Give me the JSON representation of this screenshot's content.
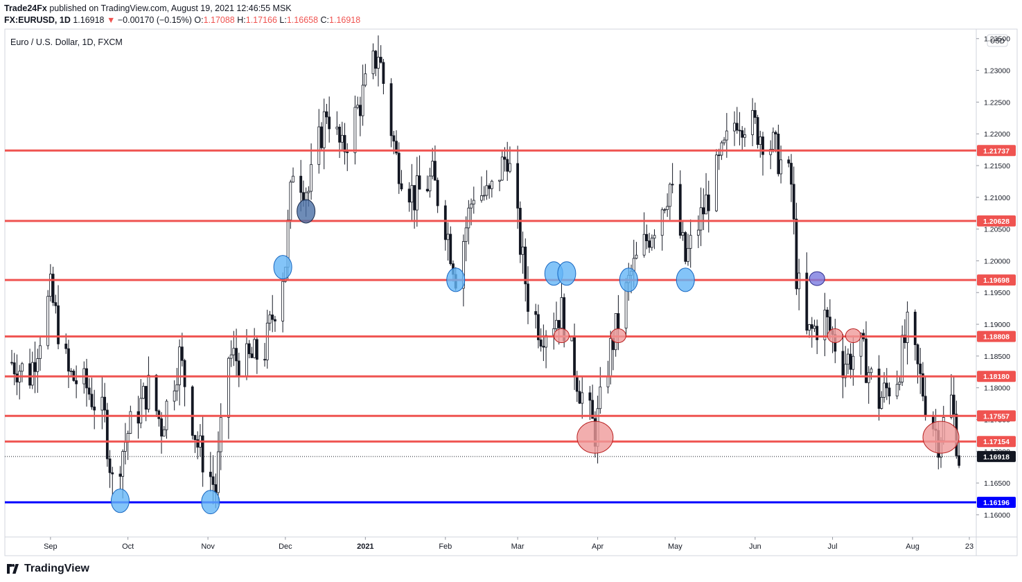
{
  "header": {
    "author": "Trade24Fx",
    "published_text": "published on TradingView.com, August 19, 2021 12:46:55 MSK",
    "symbol": "FX:EURUSD, 1D",
    "last": "1.16918",
    "change": "−0.00170 (−0.15%)",
    "o_label": "O:",
    "o_value": "1.17088",
    "h_label": "H:",
    "h_value": "1.17166",
    "l_label": "L:",
    "l_value": "1.16658",
    "c_label": "C:",
    "c_value": "1.16918"
  },
  "footer": {
    "brand": "TradingView"
  },
  "colors": {
    "resistance": "#ef5350",
    "support": "#0000ff",
    "bull": "#ffffff",
    "bear": "#131722",
    "circle_blue": "#64b5f6",
    "circle_red": "#ef9a9a",
    "circle_dark": "#4a6fa5",
    "circle_purple": "#7b7be0"
  },
  "chart_data": {
    "type": "candlestick",
    "title": "Euro / U.S. Dollar, 1D, FXCM",
    "currency": "USD",
    "x_range": [
      "2020-08-17",
      "2021-08-23"
    ],
    "ylim": [
      1.1565,
      1.2365
    ],
    "y_ticks": [
      1.16,
      1.165,
      1.17,
      1.175,
      1.18,
      1.185,
      1.19,
      1.195,
      1.2,
      1.205,
      1.21,
      1.215,
      1.22,
      1.225,
      1.23,
      1.235
    ],
    "y_tick_labels": [
      "1.16000",
      "1.16500",
      "1.17000",
      "1.17500",
      "1.18000",
      "1.18500",
      "1.19000",
      "1.19500",
      "1.20000",
      "1.20500",
      "1.21000",
      "1.21500",
      "1.22000",
      "1.22500",
      "1.23000",
      "1.23500"
    ],
    "x_ticks": [
      {
        "label": "Sep",
        "date": "2020-09-01"
      },
      {
        "label": "Oct",
        "date": "2020-10-01"
      },
      {
        "label": "Nov",
        "date": "2020-11-01"
      },
      {
        "label": "Dec",
        "date": "2020-12-01"
      },
      {
        "label": "2021",
        "date": "2021-01-01"
      },
      {
        "label": "Feb",
        "date": "2021-02-01"
      },
      {
        "label": "Mar",
        "date": "2021-03-01"
      },
      {
        "label": "Apr",
        "date": "2021-04-01"
      },
      {
        "label": "May",
        "date": "2021-05-01"
      },
      {
        "label": "Jun",
        "date": "2021-06-01"
      },
      {
        "label": "Jul",
        "date": "2021-07-01"
      },
      {
        "label": "Aug",
        "date": "2021-08-01"
      },
      {
        "label": "23",
        "date": "2021-08-23"
      }
    ],
    "levels": [
      {
        "value": 1.21737,
        "label": "1.21737",
        "kind": "resistance"
      },
      {
        "value": 1.20628,
        "label": "1.20628",
        "kind": "resistance"
      },
      {
        "value": 1.19698,
        "label": "1.19698",
        "kind": "resistance"
      },
      {
        "value": 1.18808,
        "label": "1.18808",
        "kind": "resistance"
      },
      {
        "value": 1.1818,
        "label": "1.18180",
        "kind": "resistance"
      },
      {
        "value": 1.17557,
        "label": "1.17557",
        "kind": "resistance"
      },
      {
        "value": 1.17154,
        "label": "1.17154",
        "kind": "resistance"
      },
      {
        "value": 1.16196,
        "label": "1.16196",
        "kind": "support"
      }
    ],
    "last_price": {
      "value": 1.16918,
      "label": "1.16918"
    },
    "path": [
      [
        "2020-08-17",
        1.184
      ],
      [
        "2020-08-24",
        1.182
      ],
      [
        "2020-09-01",
        1.195
      ],
      [
        "2020-09-08",
        1.182
      ],
      [
        "2020-09-15",
        1.18
      ],
      [
        "2020-09-22",
        1.175
      ],
      [
        "2020-09-25",
        1.165
      ],
      [
        "2020-10-01",
        1.173
      ],
      [
        "2020-10-09",
        1.18
      ],
      [
        "2020-10-14",
        1.174
      ],
      [
        "2020-10-21",
        1.185
      ],
      [
        "2020-10-28",
        1.171
      ],
      [
        "2020-11-04",
        1.164
      ],
      [
        "2020-11-09",
        1.185
      ],
      [
        "2020-11-16",
        1.184
      ],
      [
        "2020-11-23",
        1.186
      ],
      [
        "2020-12-01",
        1.2
      ],
      [
        "2020-12-04",
        1.215
      ],
      [
        "2020-12-10",
        1.211
      ],
      [
        "2020-12-17",
        1.224
      ],
      [
        "2020-12-23",
        1.217
      ],
      [
        "2021-01-06",
        1.233
      ],
      [
        "2021-01-13",
        1.216
      ],
      [
        "2021-01-20",
        1.21
      ],
      [
        "2021-01-27",
        1.213
      ],
      [
        "2021-02-01",
        1.206
      ],
      [
        "2021-02-05",
        1.198
      ],
      [
        "2021-02-12",
        1.211
      ],
      [
        "2021-02-18",
        1.21
      ],
      [
        "2021-02-25",
        1.217
      ],
      [
        "2021-03-05",
        1.194
      ],
      [
        "2021-03-10",
        1.189
      ],
      [
        "2021-03-18",
        1.192
      ],
      [
        "2021-03-25",
        1.18
      ],
      [
        "2021-03-31",
        1.173
      ],
      [
        "2021-04-06",
        1.186
      ],
      [
        "2021-04-14",
        1.198
      ],
      [
        "2021-04-23",
        1.206
      ],
      [
        "2021-04-29",
        1.212
      ],
      [
        "2021-05-05",
        1.2
      ],
      [
        "2021-05-12",
        1.208
      ],
      [
        "2021-05-25",
        1.223
      ],
      [
        "2021-06-01",
        1.221
      ],
      [
        "2021-06-08",
        1.218
      ],
      [
        "2021-06-15",
        1.212
      ],
      [
        "2021-06-17",
        1.198
      ],
      [
        "2021-06-21",
        1.188
      ],
      [
        "2021-06-28",
        1.191
      ],
      [
        "2021-07-05",
        1.184
      ],
      [
        "2021-07-12",
        1.186
      ],
      [
        "2021-07-19",
        1.178
      ],
      [
        "2021-07-26",
        1.182
      ],
      [
        "2021-07-30",
        1.189
      ],
      [
        "2021-08-06",
        1.178
      ],
      [
        "2021-08-11",
        1.172
      ],
      [
        "2021-08-16",
        1.178
      ],
      [
        "2021-08-19",
        1.1692
      ]
    ],
    "markers": [
      {
        "date": "2020-09-28",
        "price": 1.1622,
        "color": "blue",
        "size": "large"
      },
      {
        "date": "2020-11-02",
        "price": 1.162,
        "color": "blue",
        "size": "large"
      },
      {
        "date": "2020-11-30",
        "price": 1.199,
        "color": "blue",
        "size": "large"
      },
      {
        "date": "2020-12-09",
        "price": 1.2078,
        "color": "dark",
        "size": "large"
      },
      {
        "date": "2021-02-05",
        "price": 1.197,
        "color": "blue",
        "size": "large"
      },
      {
        "date": "2021-03-15",
        "price": 1.198,
        "color": "blue",
        "size": "large"
      },
      {
        "date": "2021-03-20",
        "price": 1.198,
        "color": "blue",
        "size": "large"
      },
      {
        "date": "2021-03-18",
        "price": 1.1882,
        "color": "red",
        "size": "medium"
      },
      {
        "date": "2021-03-31",
        "price": 1.1722,
        "color": "red",
        "size": "xlarge"
      },
      {
        "date": "2021-04-09",
        "price": 1.1882,
        "color": "red",
        "size": "medium"
      },
      {
        "date": "2021-04-13",
        "price": 1.197,
        "color": "blue",
        "size": "large"
      },
      {
        "date": "2021-05-05",
        "price": 1.197,
        "color": "blue",
        "size": "large"
      },
      {
        "date": "2021-06-25",
        "price": 1.1972,
        "color": "purple",
        "size": "medium"
      },
      {
        "date": "2021-07-02",
        "price": 1.1882,
        "color": "red",
        "size": "medium"
      },
      {
        "date": "2021-07-09",
        "price": 1.1882,
        "color": "red",
        "size": "medium"
      },
      {
        "date": "2021-08-12",
        "price": 1.1722,
        "color": "red",
        "size": "xlarge"
      }
    ]
  }
}
